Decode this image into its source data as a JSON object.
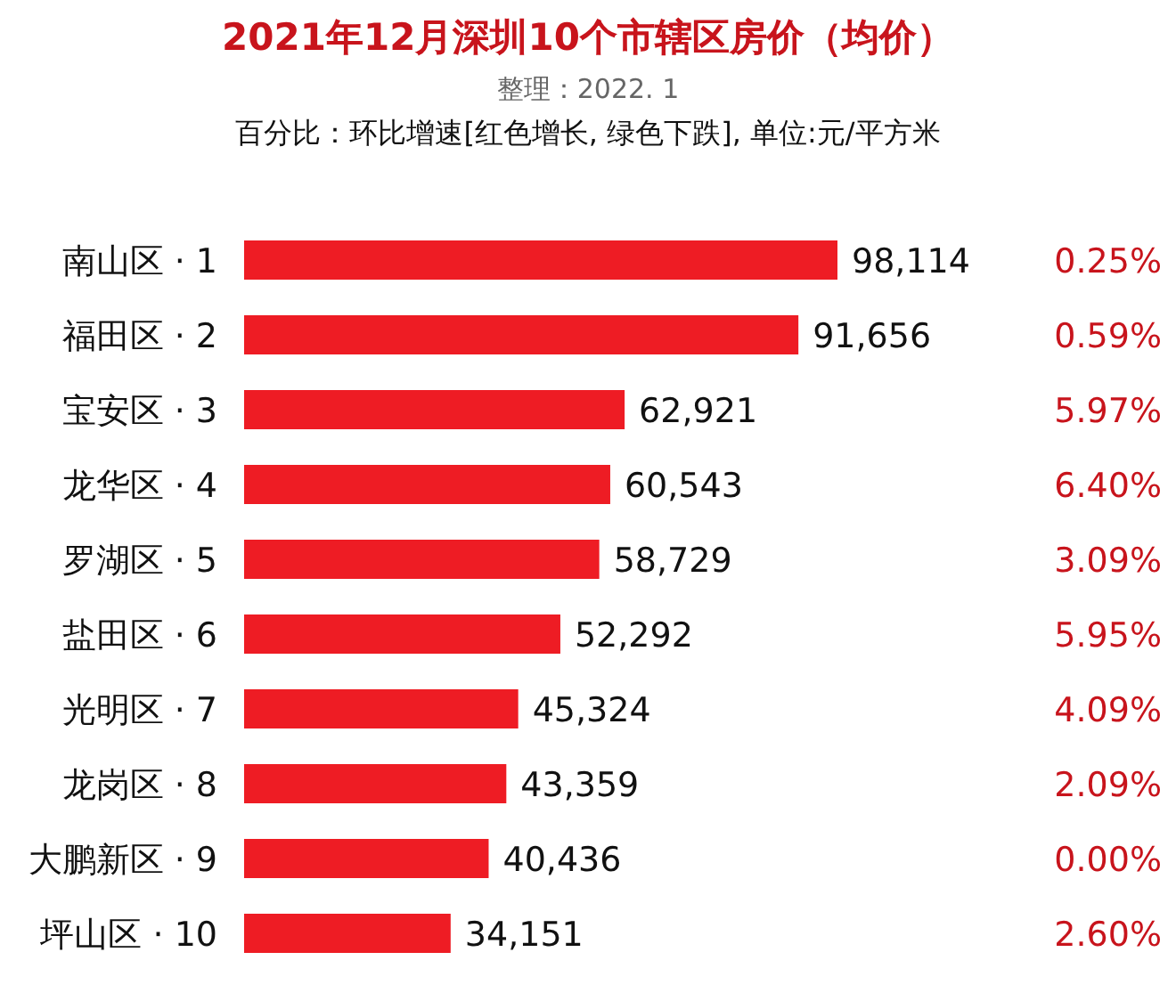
{
  "chart_data": {
    "type": "bar",
    "orientation": "horizontal",
    "title": "2021年12月深圳10个市辖区房价（均价）",
    "subtitle": "整理：2022. 1",
    "categories": [
      "南山区 · 1",
      "福田区 · 2",
      "宝安区 · 3",
      "龙华区 · 4",
      "罗湖区 · 5",
      "盐田区 · 6",
      "光明区 · 7",
      "龙岗区 · 8",
      "大鹏新区 · 9",
      "坪山区 · 10"
    ],
    "values": [
      98114,
      91656,
      62921,
      60543,
      58729,
      52292,
      45324,
      43359,
      40436,
      34151
    ],
    "value_labels": [
      "98,114",
      "91,656",
      "62,921",
      "60,543",
      "58,729",
      "52,292",
      "45,324",
      "43,359",
      "40,436",
      "34,151"
    ],
    "color": "#ee1c24",
    "annotations": [
      "百分比：环比增速[红色增长, 绿色下跌], 单位:元/平方米",
      "0.25%",
      "0.59%",
      "5.97%",
      "6.40%",
      "3.09%",
      "5.95%",
      "4.09%",
      "2.09%",
      "0.00%",
      "2.60%"
    ]
  }
}
